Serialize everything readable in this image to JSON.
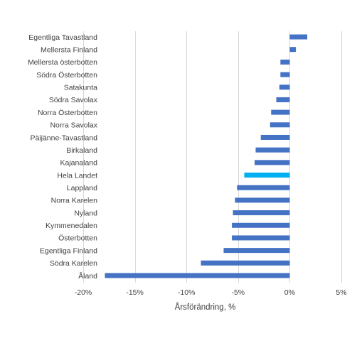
{
  "chart_data": {
    "type": "bar",
    "orientation": "horizontal",
    "title": "",
    "xlabel": "Årsförändring, %",
    "ylabel": "",
    "xlim": [
      -20,
      5
    ],
    "x_ticks": [
      -20,
      -15,
      -10,
      -5,
      0,
      5
    ],
    "x_tick_labels": [
      "-20%",
      "-15%",
      "-10%",
      "-5%",
      "0%",
      "5%"
    ],
    "grid": "vertical",
    "legend": "none",
    "bar_color": "#4472C4",
    "highlight_color": "#00B0F0",
    "highlight_category": "Hela Landet",
    "categories": [
      "Egentliga Tavastland",
      "Mellersta Finland",
      "Mellersta österbotten",
      "Södra Österbotten",
      "Satakunta",
      "Södra Savolax",
      "Norra Österbotten",
      "Norra Savolax",
      "Päijänne-Tavastland",
      "Birkaland",
      "Kajanaland",
      "Hela Landet",
      "Lappland",
      "Norra Karelen",
      "Nyland",
      "Kymmenedalen",
      "Österbotten",
      "Egentliga Finland",
      "Södra Karelen",
      "Åland"
    ],
    "values": [
      1.7,
      0.6,
      -0.9,
      -0.9,
      -1.0,
      -1.3,
      -1.8,
      -1.9,
      -2.8,
      -3.3,
      -3.4,
      -4.4,
      -5.1,
      -5.3,
      -5.5,
      -5.6,
      -5.6,
      -6.4,
      -8.6,
      -17.9
    ]
  }
}
